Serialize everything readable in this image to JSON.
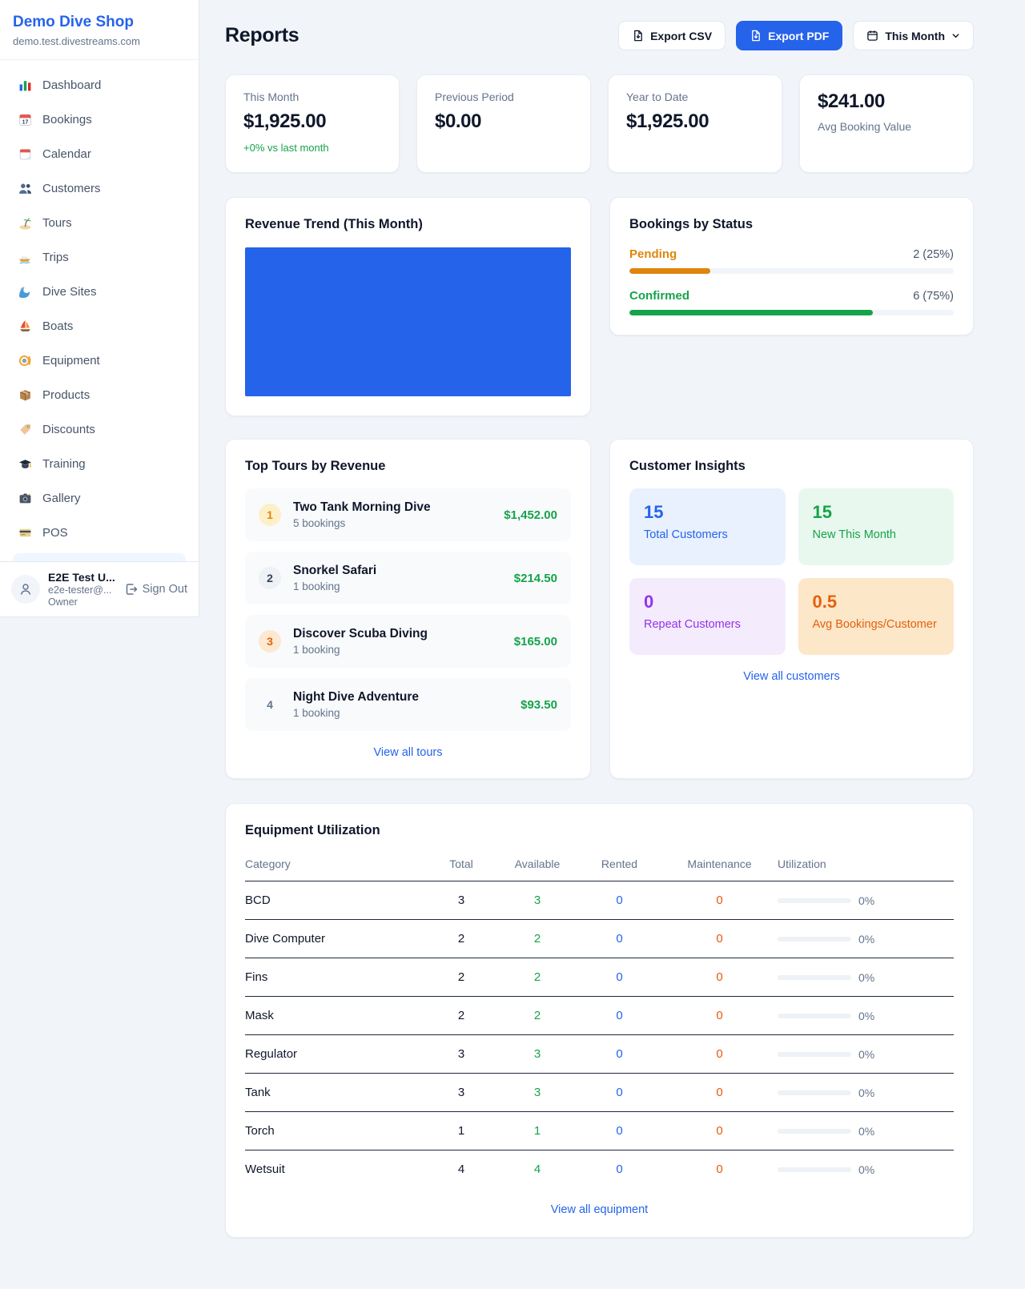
{
  "colors": {
    "accent_blue": "#2563eb",
    "success_green": "#16a34a",
    "pending_orange": "#df850c",
    "maintenance_orange": "#ea580c",
    "repeat_purple": "#9333ea"
  },
  "brand": {
    "name": "Demo Dive Shop",
    "domain": "demo.test.divestreams.com"
  },
  "sidebar": {
    "items": [
      {
        "label": "Dashboard",
        "icon": "bar-chart-icon"
      },
      {
        "label": "Bookings",
        "icon": "calendar-date-icon"
      },
      {
        "label": "Calendar",
        "icon": "tear-off-calendar-icon"
      },
      {
        "label": "Customers",
        "icon": "people-icon"
      },
      {
        "label": "Tours",
        "icon": "island-icon"
      },
      {
        "label": "Trips",
        "icon": "speedboat-icon"
      },
      {
        "label": "Dive Sites",
        "icon": "wave-icon"
      },
      {
        "label": "Boats",
        "icon": "sailboat-icon"
      },
      {
        "label": "Equipment",
        "icon": "dive-mask-icon"
      },
      {
        "label": "Products",
        "icon": "package-icon"
      },
      {
        "label": "Discounts",
        "icon": "tag-icon"
      },
      {
        "label": "Training",
        "icon": "graduation-cap-icon"
      },
      {
        "label": "Gallery",
        "icon": "camera-icon"
      },
      {
        "label": "POS",
        "icon": "credit-card-icon"
      }
    ]
  },
  "user": {
    "name": "E2E Test U...",
    "email": "e2e-tester@...",
    "role": "Owner",
    "sign_out_label": "Sign Out"
  },
  "header": {
    "title": "Reports",
    "export_csv_label": "Export CSV",
    "export_pdf_label": "Export PDF",
    "period_label": "This Month"
  },
  "stats": [
    {
      "label": "This Month",
      "value": "$1,925.00",
      "delta": "+0% vs last month"
    },
    {
      "label": "Previous Period",
      "value": "$0.00"
    },
    {
      "label": "Year to Date",
      "value": "$1,925.00"
    },
    {
      "label": "Avg Booking Value",
      "value": "$241.00"
    }
  ],
  "revenue_trend": {
    "title": "Revenue Trend (This Month)",
    "fill_color": "#2563eb"
  },
  "bookings_by_status": {
    "title": "Bookings by Status",
    "rows": [
      {
        "label": "Pending",
        "value": "2 (25%)",
        "percent": 25,
        "color": "#df850c"
      },
      {
        "label": "Confirmed",
        "value": "6 (75%)",
        "percent": 75,
        "color": "#16a34a"
      }
    ]
  },
  "top_tours": {
    "title": "Top Tours by Revenue",
    "rows": [
      {
        "rank": "1",
        "name": "Two Tank Morning Dive",
        "bookings": "5 bookings",
        "amount": "$1,452.00",
        "badge_bg": "#fdf0c9",
        "badge_color": "#e0870f"
      },
      {
        "rank": "2",
        "name": "Snorkel Safari",
        "bookings": "1 booking",
        "amount": "$214.50",
        "badge_bg": "#eef1f5",
        "badge_color": "#334155"
      },
      {
        "rank": "3",
        "name": "Discover Scuba Diving",
        "bookings": "1 booking",
        "amount": "$165.00",
        "badge_bg": "#fde8d1",
        "badge_color": "#e4600e"
      },
      {
        "rank": "4",
        "name": "Night Dive Adventure",
        "bookings": "1 booking",
        "amount": "$93.50",
        "badge_bg": "transparent",
        "badge_color": "#64748b"
      }
    ],
    "view_all_label": "View all tours"
  },
  "customer_insights": {
    "title": "Customer Insights",
    "tiles": [
      {
        "value": "15",
        "label": "Total Customers",
        "bg": "#e9f1fe",
        "color": "#2563eb"
      },
      {
        "value": "15",
        "label": "New This Month",
        "bg": "#e8f8ee",
        "color": "#16a34a"
      },
      {
        "value": "0",
        "label": "Repeat Customers",
        "bg": "#f4ebfd",
        "color": "#9333ea"
      },
      {
        "value": "0.5",
        "label": "Avg Bookings/Customer",
        "bg": "#fde7c9",
        "color": "#e4600e"
      }
    ],
    "view_all_label": "View all customers"
  },
  "equipment": {
    "title": "Equipment Utilization",
    "headers": [
      "Category",
      "Total",
      "Available",
      "Rented",
      "Maintenance",
      "Utilization"
    ],
    "rows": [
      {
        "category": "BCD",
        "total": "3",
        "available": "3",
        "rented": "0",
        "maintenance": "0",
        "utilization_pct": 0,
        "utilization": "0%"
      },
      {
        "category": "Dive Computer",
        "total": "2",
        "available": "2",
        "rented": "0",
        "maintenance": "0",
        "utilization_pct": 0,
        "utilization": "0%"
      },
      {
        "category": "Fins",
        "total": "2",
        "available": "2",
        "rented": "0",
        "maintenance": "0",
        "utilization_pct": 0,
        "utilization": "0%"
      },
      {
        "category": "Mask",
        "total": "2",
        "available": "2",
        "rented": "0",
        "maintenance": "0",
        "utilization_pct": 0,
        "utilization": "0%"
      },
      {
        "category": "Regulator",
        "total": "3",
        "available": "3",
        "rented": "0",
        "maintenance": "0",
        "utilization_pct": 0,
        "utilization": "0%"
      },
      {
        "category": "Tank",
        "total": "3",
        "available": "3",
        "rented": "0",
        "maintenance": "0",
        "utilization_pct": 0,
        "utilization": "0%"
      },
      {
        "category": "Torch",
        "total": "1",
        "available": "1",
        "rented": "0",
        "maintenance": "0",
        "utilization_pct": 0,
        "utilization": "0%"
      },
      {
        "category": "Wetsuit",
        "total": "4",
        "available": "4",
        "rented": "0",
        "maintenance": "0",
        "utilization_pct": 0,
        "utilization": "0%"
      }
    ],
    "view_all_label": "View all equipment"
  },
  "chart_data": [
    {
      "type": "area",
      "title": "Revenue Trend (This Month)",
      "note": "solid blue filled plot area, no axis or tick labels visible",
      "fill_color": "#2563eb"
    },
    {
      "type": "bar",
      "title": "Bookings by Status",
      "categories": [
        "Pending",
        "Confirmed"
      ],
      "values": [
        2,
        6
      ],
      "value_labels": [
        "2 (25%)",
        "6 (75%)"
      ],
      "percents": [
        25,
        75
      ]
    }
  ]
}
